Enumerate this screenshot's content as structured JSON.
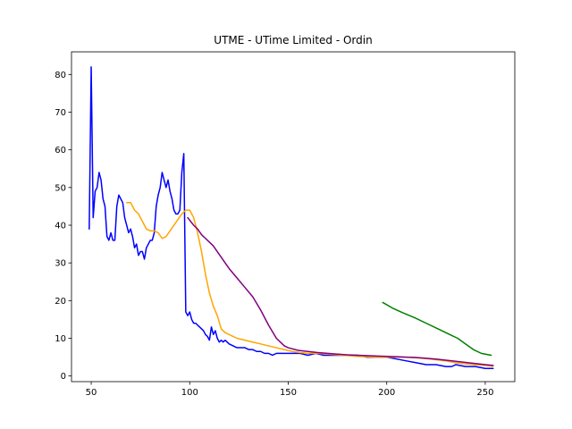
{
  "chart_data": {
    "type": "line",
    "title": "UTME - UTime Limited - Ordin",
    "xlabel": "",
    "ylabel": "",
    "xlim": [
      40,
      265
    ],
    "ylim": [
      -1.5,
      86
    ],
    "grid": false,
    "xticks": [
      50,
      100,
      150,
      200,
      250
    ],
    "yticks": [
      0,
      10,
      20,
      30,
      40,
      50,
      60,
      70,
      80
    ],
    "series": [
      {
        "color": "#0000ff",
        "x": [
          49,
          50,
          51,
          52,
          53,
          54,
          55,
          56,
          57,
          58,
          59,
          60,
          61,
          62,
          63,
          64,
          65,
          66,
          67,
          68,
          69,
          70,
          71,
          72,
          73,
          74,
          75,
          76,
          77,
          78,
          79,
          80,
          81,
          82,
          83,
          84,
          85,
          86,
          87,
          88,
          89,
          90,
          91,
          92,
          93,
          94,
          95,
          96,
          97,
          98,
          99,
          100,
          101,
          102,
          103,
          104,
          105,
          106,
          107,
          108,
          109,
          110,
          111,
          112,
          113,
          114,
          115,
          116,
          117,
          118,
          119,
          120,
          122,
          124,
          126,
          128,
          130,
          132,
          134,
          136,
          138,
          140,
          142,
          144,
          146,
          148,
          150,
          153,
          156,
          160,
          164,
          168,
          172,
          176,
          180,
          185,
          190,
          195,
          200,
          205,
          210,
          215,
          220,
          225,
          230,
          233,
          235,
          240,
          245,
          250,
          254
        ],
        "y": [
          39,
          82,
          42,
          49,
          50,
          54,
          52,
          47,
          45,
          37,
          36,
          38,
          36,
          36,
          45,
          48,
          47,
          46,
          42,
          40,
          38,
          39,
          37,
          34,
          35,
          32,
          33,
          33,
          31,
          34,
          35,
          36,
          36,
          38,
          45,
          48,
          50,
          54,
          52,
          50,
          52,
          49,
          47,
          44,
          43,
          43,
          44,
          54,
          59,
          17,
          16,
          17,
          15,
          14,
          14,
          13.5,
          13,
          12.5,
          12,
          11,
          10.5,
          9.5,
          13,
          11,
          12,
          10,
          9,
          9.5,
          9,
          9.5,
          9,
          8.5,
          8,
          7.5,
          7.5,
          7.5,
          7,
          7,
          6.5,
          6.5,
          6,
          6,
          5.5,
          6,
          6,
          6,
          6,
          6,
          6,
          5.5,
          6,
          5.5,
          5.5,
          5.5,
          5.5,
          5.5,
          5,
          5,
          5,
          4.5,
          4,
          3.5,
          3,
          3,
          2.5,
          2.5,
          3,
          2.5,
          2.5,
          2,
          2
        ]
      },
      {
        "color": "#ffa500",
        "x": [
          68,
          70,
          72,
          74,
          76,
          78,
          80,
          82,
          84,
          86,
          88,
          90,
          92,
          94,
          96,
          98,
          100,
          102,
          104,
          106,
          108,
          110,
          112,
          114,
          116,
          118,
          120,
          124,
          128,
          132,
          136,
          140,
          144,
          148,
          152,
          156,
          160,
          165,
          170,
          175,
          180,
          185,
          190,
          195,
          200,
          205,
          210,
          215,
          220,
          225,
          230,
          235,
          240,
          245,
          250,
          254
        ],
        "y": [
          46,
          46,
          44,
          43,
          41,
          39,
          38.5,
          38.5,
          38,
          36.5,
          37,
          38.5,
          40,
          41.5,
          43,
          44,
          44,
          42,
          38,
          33,
          27,
          22,
          18.5,
          16,
          12.5,
          11.5,
          11,
          10,
          9.5,
          9,
          8.5,
          8,
          7.5,
          7,
          6.5,
          6.2,
          6,
          6,
          5.8,
          5.6,
          5.4,
          5.2,
          5.1,
          5,
          5,
          5,
          5,
          4.8,
          4.6,
          4.3,
          4,
          3.5,
          3.2,
          3,
          2.8,
          2.6
        ]
      },
      {
        "color": "#800080",
        "x": [
          99,
          102,
          104,
          106,
          108,
          110,
          112,
          114,
          116,
          118,
          120,
          124,
          128,
          132,
          136,
          140,
          144,
          148,
          150,
          155,
          160,
          165,
          170,
          175,
          180,
          185,
          190,
          195,
          200,
          205,
          210,
          215,
          220,
          225,
          230,
          235,
          240,
          245,
          250,
          254
        ],
        "y": [
          42,
          40,
          39,
          37.5,
          36.5,
          35.5,
          34.5,
          33,
          31.5,
          30,
          28.5,
          26,
          23.5,
          21,
          17.5,
          13.5,
          10,
          8,
          7.5,
          6.8,
          6.5,
          6.2,
          6,
          5.8,
          5.6,
          5.5,
          5.4,
          5.3,
          5.2,
          5.1,
          5,
          4.9,
          4.7,
          4.5,
          4.2,
          3.9,
          3.6,
          3.3,
          3,
          2.8
        ]
      },
      {
        "color": "#008000",
        "x": [
          198,
          203,
          208,
          214,
          220,
          226,
          232,
          236,
          240,
          244,
          248,
          253
        ],
        "y": [
          19.5,
          18,
          16.8,
          15.5,
          14,
          12.5,
          11,
          10,
          8.5,
          7,
          6,
          5.5
        ]
      }
    ]
  }
}
